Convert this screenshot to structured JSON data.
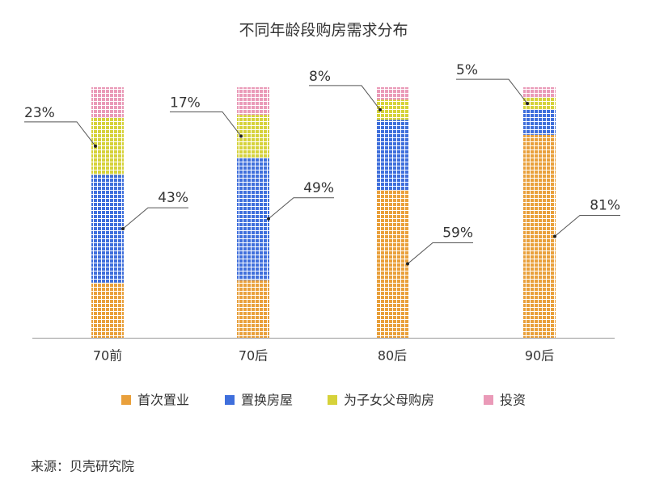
{
  "chart_data": {
    "type": "stacked_bar",
    "title": "不同年龄段购房需求分布",
    "categories": [
      "70前",
      "70后",
      "80后",
      "90后"
    ],
    "series": [
      {
        "name": "首次置业",
        "color": "#e9a03b",
        "values": [
          22,
          23,
          59,
          81
        ],
        "value_labels": [
          null,
          null,
          "59%",
          "81%"
        ]
      },
      {
        "name": "置换房屋",
        "color": "#3f6fdc",
        "values": [
          43,
          49,
          28,
          10
        ],
        "value_labels": [
          "43%",
          "49%",
          null,
          null
        ]
      },
      {
        "name": "为子女父母购房",
        "color": "#d6d23a",
        "values": [
          23,
          17,
          8,
          5
        ],
        "value_labels": [
          "23%",
          "17%",
          "8%",
          "5%"
        ]
      },
      {
        "name": "投资",
        "color": "#ea9ab8",
        "values": [
          12,
          11,
          5,
          4
        ],
        "value_labels": [
          null,
          null,
          null,
          null
        ]
      }
    ],
    "source": "来源：贝壳研究院"
  }
}
